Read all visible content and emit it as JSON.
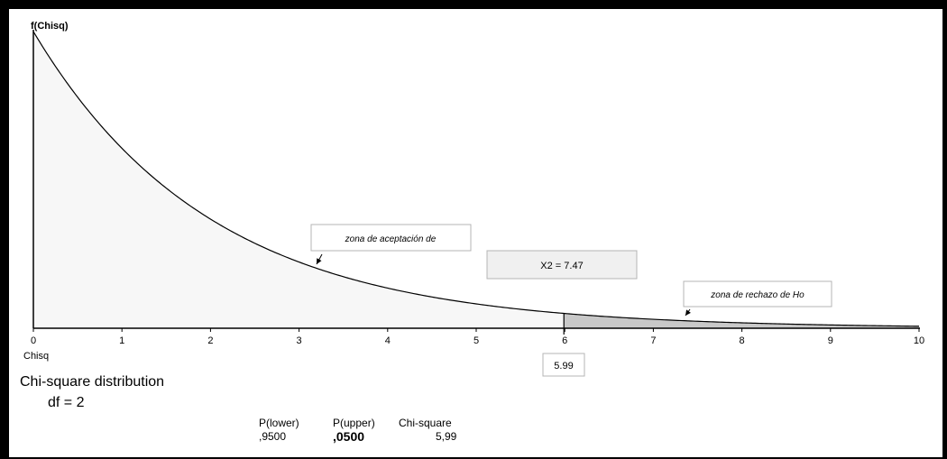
{
  "chart_data": {
    "type": "area",
    "ylabel": "f(Chisq)",
    "xlabel": "Chisq",
    "df": 2,
    "xlim": [
      0,
      10
    ],
    "x_ticks": [
      "0",
      "1",
      "2",
      "3",
      "4",
      "5",
      "6",
      "7",
      "8",
      "9",
      "10"
    ],
    "curve": "f(x) = 0.5 * exp(-x/2)",
    "x": [
      0,
      0.5,
      1,
      1.5,
      2,
      2.5,
      3,
      3.5,
      4,
      4.5,
      5,
      5.5,
      6,
      6.5,
      7,
      7.5,
      8,
      8.5,
      9,
      9.5,
      10
    ],
    "y": [
      0.5,
      0.389,
      0.303,
      0.236,
      0.184,
      0.143,
      0.112,
      0.087,
      0.068,
      0.053,
      0.041,
      0.032,
      0.025,
      0.019,
      0.015,
      0.012,
      0.009,
      0.007,
      0.006,
      0.004,
      0.003
    ],
    "critical_value": 5.99,
    "critical_label": "5.99",
    "acceptance_region": [
      0,
      5.99
    ],
    "rejection_region": [
      5.99,
      10
    ],
    "colors": {
      "acceptance": "#f7f7f7",
      "rejection": "#c8c8c8",
      "curve": "#000000"
    },
    "annotations": {
      "acceptance": "zona de aceptación de",
      "statistic": "X2 = 7.47",
      "rejection": "zona de rechazo de Ho"
    }
  },
  "info": {
    "title": "Chi-square distribution",
    "df_label": "df = 2",
    "table_headers": [
      "P(lower)",
      "P(upper)",
      "Chi-square"
    ],
    "table_values": [
      ",9500",
      ",0500",
      "5,99"
    ]
  }
}
